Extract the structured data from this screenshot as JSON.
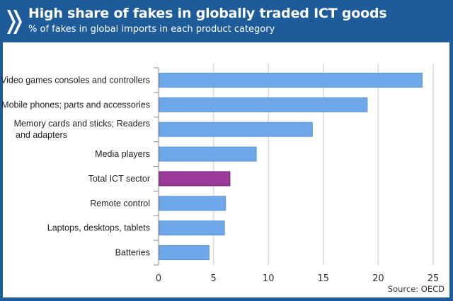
{
  "header": {
    "title": "High share of fakes in globally traded ICT goods",
    "subtitle": "% of fakes in global imports in each product category"
  },
  "colors": {
    "header": "#1d5c98",
    "bar": "#6fa8e8",
    "highlight": "#9b3a9b",
    "grid": "#d9d9d9"
  },
  "chart_data": {
    "type": "bar",
    "orientation": "horizontal",
    "title": "High share of fakes in globally traded ICT goods",
    "subtitle": "% of fakes in global imports in each product category",
    "categories": [
      [
        "Video games consoles and controllers"
      ],
      [
        "Mobile phones; parts and accessories"
      ],
      [
        "Memory cards and sticks; Readers",
        "and adapters"
      ],
      [
        "Media players"
      ],
      [
        "Total ICT sector"
      ],
      [
        "Remote control"
      ],
      [
        "Laptops, desktops, tablets"
      ],
      [
        "Batteries"
      ]
    ],
    "values": [
      24,
      19,
      14,
      8.9,
      6.5,
      6.1,
      6.0,
      4.6
    ],
    "highlight_index": 4,
    "xlim": [
      0,
      25
    ],
    "xticks": [
      "0",
      "5",
      "10",
      "15",
      "20",
      "25"
    ],
    "grid": true,
    "source": "Source: OECD"
  }
}
